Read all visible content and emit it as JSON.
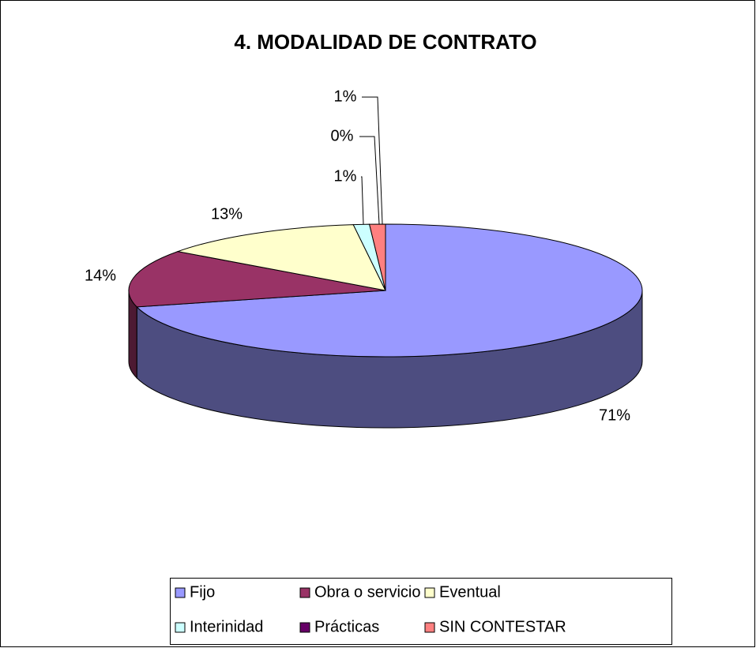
{
  "chart_data": {
    "type": "pie3d",
    "title": "4. MODALIDAD DE CONTRATO",
    "categories": [
      "Fijo",
      "Obra o servicio",
      "Eventual",
      "Interinidad",
      "Prácticas",
      "SIN CONTESTAR"
    ],
    "values": [
      71,
      14,
      13,
      1,
      0,
      1
    ],
    "value_labels": [
      "71%",
      "14%",
      "13%",
      "1%",
      "0%",
      "1%"
    ],
    "colors": [
      "#9999ff",
      "#993366",
      "#ffffcc",
      "#ccffff",
      "#660066",
      "#ff8080"
    ],
    "legend": "bottom"
  }
}
